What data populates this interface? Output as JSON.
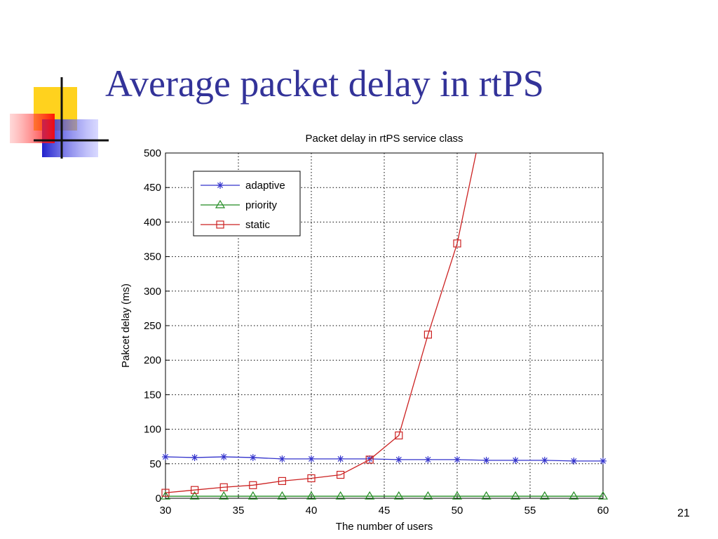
{
  "slide": {
    "title": "Average packet delay in rtPS",
    "page_number": "21"
  },
  "chart_data": {
    "type": "line",
    "title": "Packet delay in rtPS service class",
    "xlabel": "The number of users",
    "ylabel": "Pakcet delay (ms)",
    "xlim": [
      30,
      60
    ],
    "ylim": [
      0,
      500
    ],
    "xticks": [
      30,
      35,
      40,
      45,
      50,
      55,
      60
    ],
    "yticks": [
      0,
      50,
      100,
      150,
      200,
      250,
      300,
      350,
      400,
      450,
      500
    ],
    "grid": true,
    "legend_position": "top-left",
    "x": [
      30,
      32,
      34,
      36,
      38,
      40,
      42,
      44,
      46,
      48,
      50,
      52,
      54,
      56,
      58,
      60
    ],
    "series": [
      {
        "name": "adaptive",
        "marker": "asterisk",
        "color": "#3333cc",
        "values": [
          60,
          59,
          60,
          59,
          57,
          57,
          57,
          57,
          56,
          56,
          56,
          55,
          55,
          55,
          54,
          54
        ]
      },
      {
        "name": "priority",
        "marker": "triangle",
        "color": "#228b22",
        "values": [
          3,
          3,
          3,
          3,
          3,
          3,
          3,
          3,
          3,
          3,
          3,
          3,
          3,
          3,
          3,
          3
        ]
      },
      {
        "name": "static",
        "marker": "square",
        "color": "#cc2222",
        "x": [
          30,
          32,
          34,
          36,
          38,
          40,
          42,
          44,
          46,
          48,
          50,
          51.3
        ],
        "values": [
          8,
          12,
          16,
          19,
          25,
          29,
          34,
          56,
          91,
          237,
          369,
          500
        ]
      }
    ]
  }
}
